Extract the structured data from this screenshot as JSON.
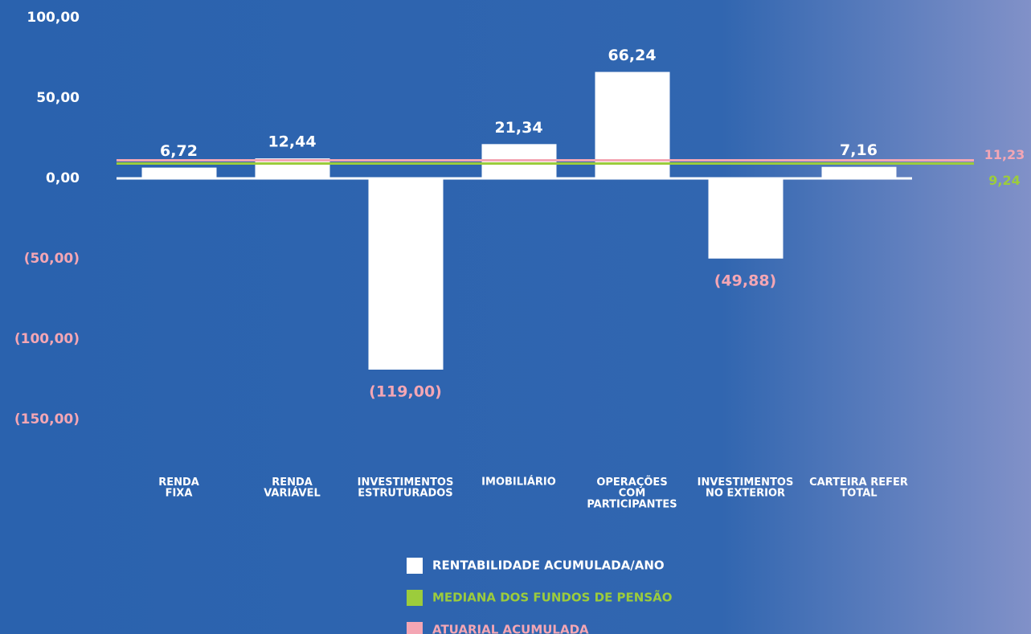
{
  "chart_data": {
    "type": "bar",
    "categories": [
      "RENDA\nFIXA",
      "RENDA\nVARIÁVEL",
      "INVESTIMENTOS\nESTRUTURADOS",
      "IMOBILIÁRIO",
      "OPERAÇÕES\nCOM\nPARTICIPANTES",
      "INVESTIMENTOS\nNO EXTERIOR",
      "CARTEIRA REFER\nTOTAL"
    ],
    "series": [
      {
        "name": "RENTABILIDADE ACUMULADA/ANO",
        "color": "#ffffff",
        "values": [
          6.72,
          12.44,
          -119.0,
          21.34,
          66.24,
          -49.88,
          7.16
        ],
        "value_labels": [
          "6,72",
          "12,44",
          "(119,00)",
          "21,34",
          "66,24",
          "(49,88)",
          "7,16"
        ]
      }
    ],
    "reference_lines": [
      {
        "name": "MEDIANA DOS FUNDOS DE PENSÃO",
        "color": "#9ccc3c",
        "value": 9.24,
        "label": "9,24"
      },
      {
        "name": "ATUARIAL ACUMULADA",
        "color": "#f4a6b4",
        "value": 11.23,
        "label": "11,23"
      }
    ],
    "negative_color": "#f4a6b4",
    "ylim": [
      -150,
      100
    ],
    "yticks": [
      {
        "value": 100,
        "label": "100,00"
      },
      {
        "value": 50,
        "label": "50,00"
      },
      {
        "value": 0,
        "label": "0,00"
      },
      {
        "value": -50,
        "label": "(50,00)"
      },
      {
        "value": -100,
        "label": "(100,00)"
      },
      {
        "value": -150,
        "label": "(150,00)"
      }
    ]
  }
}
